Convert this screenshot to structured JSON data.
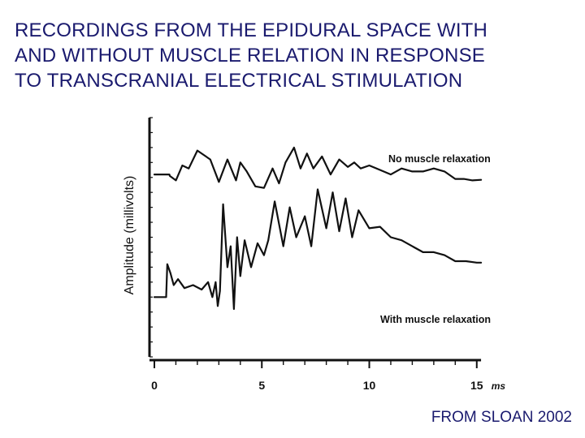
{
  "slide": {
    "title": "RECORDINGS FROM THE EPIDURAL SPACE WITH\nAND WITHOUT MUSCLE RELATION IN RESPONSE\nTO TRANSCRANIAL ELECTRICAL STIMULATION",
    "credit": "FROM SLOAN 2002"
  },
  "chart_data": {
    "type": "line",
    "title": "",
    "xlabel": "ms",
    "ylabel": "Amplitude (millivolts)",
    "xlim": [
      0,
      15.5
    ],
    "ylim": [
      -4,
      4
    ],
    "x_ticks": [
      0,
      5,
      10,
      15
    ],
    "x_tick_labels": [
      "0",
      "5",
      "10",
      "15"
    ],
    "x_unit_label": "ms",
    "grid": false,
    "series": [
      {
        "name": "No muscle relaxation",
        "x": [
          0,
          0.7,
          0.72,
          1.0,
          1.3,
          1.6,
          2.0,
          2.6,
          3.0,
          3.4,
          3.8,
          4.0,
          4.3,
          4.7,
          5.1,
          5.5,
          5.8,
          6.1,
          6.5,
          6.8,
          7.1,
          7.4,
          7.8,
          8.2,
          8.6,
          9.0,
          9.3,
          9.6,
          10.0,
          10.5,
          11.0,
          11.5,
          12.0,
          12.5,
          13.0,
          13.5,
          14.0,
          14.4,
          14.8,
          15.2
        ],
        "y": [
          2.1,
          2.1,
          2.05,
          1.9,
          2.4,
          2.3,
          2.9,
          2.6,
          1.85,
          2.6,
          1.9,
          2.5,
          2.2,
          1.7,
          1.65,
          2.3,
          1.8,
          2.5,
          3.0,
          2.3,
          2.8,
          2.3,
          2.7,
          2.1,
          2.6,
          2.35,
          2.5,
          2.3,
          2.4,
          2.25,
          2.1,
          2.3,
          2.2,
          2.2,
          2.3,
          2.2,
          1.95,
          1.95,
          1.9,
          1.92
        ]
      },
      {
        "name": "With muscle relaxation",
        "x": [
          0,
          0.55,
          0.6,
          0.75,
          0.9,
          1.1,
          1.4,
          1.8,
          2.2,
          2.5,
          2.7,
          2.85,
          2.95,
          3.05,
          3.2,
          3.4,
          3.55,
          3.7,
          3.85,
          4.0,
          4.2,
          4.5,
          4.8,
          5.1,
          5.3,
          5.6,
          6.0,
          6.3,
          6.6,
          7.0,
          7.3,
          7.6,
          8.0,
          8.3,
          8.6,
          8.9,
          9.2,
          9.5,
          10.0,
          10.5,
          11.0,
          11.5,
          12.0,
          12.5,
          13.0,
          13.5,
          14.0,
          14.5,
          15.0,
          15.2
        ],
        "y": [
          -2.0,
          -2.0,
          -0.9,
          -1.2,
          -1.6,
          -1.4,
          -1.7,
          -1.6,
          -1.75,
          -1.5,
          -2.0,
          -1.5,
          -2.3,
          -1.8,
          1.1,
          -1.0,
          -0.3,
          -2.4,
          0.0,
          -1.3,
          -0.1,
          -1.0,
          -0.2,
          -0.6,
          -0.1,
          1.2,
          -0.3,
          1.0,
          0.0,
          0.7,
          -0.3,
          1.6,
          0.3,
          1.5,
          0.2,
          1.3,
          0.0,
          0.9,
          0.3,
          0.35,
          0.0,
          -0.1,
          -0.3,
          -0.5,
          -0.5,
          -0.6,
          -0.8,
          -0.8,
          -0.85,
          -0.85
        ]
      }
    ]
  }
}
